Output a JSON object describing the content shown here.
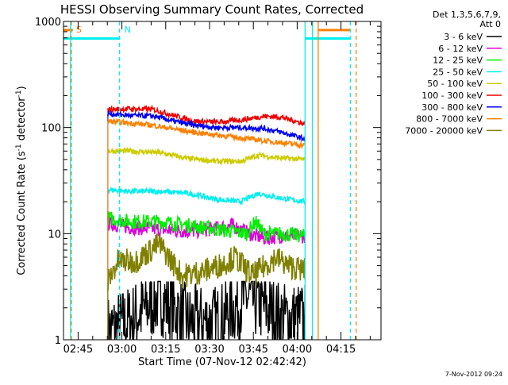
{
  "chart_data": {
    "type": "line",
    "title": "HESSI Observing Summary Count Rates, Corrected",
    "xlabel": "Start Time (07-Nov-12 02:42:42)",
    "ylabel_main": "Corrected Count Rate (s",
    "ylabel_sup1": "-1",
    "ylabel_mid": " detector",
    "ylabel_sup2": "-1",
    "ylabel_end": ")",
    "yscale": "log",
    "ylim": [
      1,
      1000
    ],
    "xlim_min": [
      -2.7,
      106
    ],
    "x_ticks": [
      {
        "min": 2.3,
        "label": "02:45"
      },
      {
        "min": 17.3,
        "label": "03:00"
      },
      {
        "min": 32.3,
        "label": "03:15"
      },
      {
        "min": 47.3,
        "label": "03:30"
      },
      {
        "min": 62.3,
        "label": "03:45"
      },
      {
        "min": 77.3,
        "label": "04:00"
      },
      {
        "min": 92.3,
        "label": "04:15"
      }
    ],
    "y_ticks": [
      {
        "value": 1,
        "label": "1"
      },
      {
        "value": 10,
        "label": "10"
      },
      {
        "value": 100,
        "label": "100"
      },
      {
        "value": 1000,
        "label": "1000"
      }
    ],
    "legend_header": [
      "Det 1,3,5,6,7,9,",
      "Att 0"
    ],
    "series": [
      {
        "name": "3 - 6 keV",
        "color": "#000000",
        "values": [
          [
            12.5,
            1.2
          ],
          [
            20,
            1.5
          ],
          [
            30,
            2.5
          ],
          [
            40,
            1.5
          ],
          [
            50,
            1.5
          ],
          [
            60,
            2.5
          ],
          [
            72,
            1.6
          ],
          [
            80,
            1.6
          ]
        ]
      },
      {
        "name": "6 - 12 keV",
        "color": "#dd00dd",
        "values": [
          [
            12.5,
            12.5
          ],
          [
            20,
            11.5
          ],
          [
            30,
            11
          ],
          [
            40,
            10.5
          ],
          [
            48,
            11
          ],
          [
            55,
            12
          ],
          [
            61,
            10
          ],
          [
            66,
            9
          ],
          [
            72,
            9.5
          ],
          [
            80,
            9.5
          ]
        ]
      },
      {
        "name": "12 - 25 keV",
        "color": "#00ee00",
        "values": [
          [
            12.5,
            14
          ],
          [
            20,
            13
          ],
          [
            30,
            13
          ],
          [
            40,
            12
          ],
          [
            50,
            11
          ],
          [
            60,
            10
          ],
          [
            63,
            13
          ],
          [
            66,
            10
          ],
          [
            72,
            10
          ],
          [
            80,
            9.5
          ]
        ]
      },
      {
        "name": "25 - 50 keV",
        "color": "#00eeee",
        "values": [
          [
            12.5,
            26
          ],
          [
            20,
            25
          ],
          [
            30,
            25
          ],
          [
            40,
            24
          ],
          [
            50,
            21
          ],
          [
            58,
            20
          ],
          [
            64,
            24
          ],
          [
            70,
            22
          ],
          [
            80,
            20
          ]
        ]
      },
      {
        "name": "50 - 100 keV",
        "color": "#cccc00",
        "values": [
          [
            12.5,
            60
          ],
          [
            20,
            60
          ],
          [
            30,
            58
          ],
          [
            40,
            51
          ],
          [
            50,
            48
          ],
          [
            58,
            48
          ],
          [
            64,
            55
          ],
          [
            70,
            52
          ],
          [
            80,
            50
          ]
        ]
      },
      {
        "name": "100 - 300 keV",
        "color": "#ee0000",
        "values": [
          [
            12.5,
            148
          ],
          [
            20,
            150
          ],
          [
            28,
            148
          ],
          [
            35,
            130
          ],
          [
            42,
            115
          ],
          [
            50,
            112
          ],
          [
            58,
            118
          ],
          [
            66,
            128
          ],
          [
            72,
            125
          ],
          [
            80,
            108
          ]
        ]
      },
      {
        "name": "300 - 800 keV",
        "color": "#0000ee",
        "values": [
          [
            12.5,
            135
          ],
          [
            20,
            130
          ],
          [
            28,
            128
          ],
          [
            35,
            115
          ],
          [
            42,
            105
          ],
          [
            50,
            100
          ],
          [
            58,
            100
          ],
          [
            66,
            98
          ],
          [
            72,
            90
          ],
          [
            80,
            78
          ]
        ]
      },
      {
        "name": "800 - 7000 keV",
        "color": "#ff8000",
        "values": [
          [
            12.5,
            115
          ],
          [
            20,
            110
          ],
          [
            28,
            105
          ],
          [
            35,
            97
          ],
          [
            42,
            90
          ],
          [
            50,
            85
          ],
          [
            58,
            80
          ],
          [
            66,
            75
          ],
          [
            72,
            72
          ],
          [
            80,
            68
          ]
        ]
      },
      {
        "name": "7000 - 20000 keV",
        "color": "#808000",
        "values": [
          [
            12.5,
            3.5
          ],
          [
            16,
            5.5
          ],
          [
            22,
            5.5
          ],
          [
            30,
            8
          ],
          [
            38,
            4
          ],
          [
            46,
            4.5
          ],
          [
            52,
            5.2
          ],
          [
            56,
            6
          ],
          [
            62,
            4
          ],
          [
            70,
            6
          ],
          [
            74,
            5
          ],
          [
            80,
            4.5
          ]
        ]
      }
    ],
    "markers": [
      {
        "label": "S",
        "color": "#ff8000",
        "x": 0,
        "y_top": 1000
      },
      {
        "label": "N",
        "color": "#00eeee",
        "x": 16.5,
        "y_top": 1000
      }
    ],
    "timestamp": "7-Nov-2012 09:24"
  }
}
